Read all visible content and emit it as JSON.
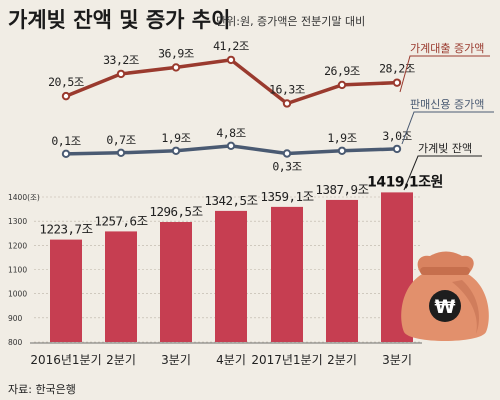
{
  "title": "가계빚 잔액 및 증가 추이",
  "subtitle": "단위:원, 증가액은 전분기말 대비",
  "source": "자료: 한국은행",
  "icon": "money-bag-won-icon",
  "colors": {
    "background": "#f1ede5",
    "bar": "#c63e51",
    "increase_line": "#9a3a2e",
    "credit_line": "#4a5a72",
    "bag": "#e2906c"
  },
  "chart_data": [
    {
      "type": "line",
      "categories": [
        "2016년1분기",
        "2분기",
        "3분기",
        "4분기",
        "2017년1분기",
        "2분기",
        "3분기"
      ],
      "series": [
        {
          "name": "가계대출 증가액",
          "values": [
            20.5,
            33.2,
            36.9,
            41.2,
            16.3,
            26.9,
            28.2
          ],
          "labels": [
            "20,5조",
            "33,2조",
            "36,9조",
            "41,2조",
            "16,3조",
            "26,9조",
            "28,2조"
          ]
        },
        {
          "name": "판매신용 증가액",
          "values": [
            0.1,
            0.7,
            1.9,
            4.8,
            0.3,
            1.9,
            3.0
          ],
          "labels": [
            "0,1조",
            "0,7조",
            "1,9조",
            "4,8조",
            "0,3조",
            "1,9조",
            "3,0조"
          ]
        }
      ]
    },
    {
      "type": "bar",
      "categories": [
        "2016년1분기",
        "2분기",
        "3분기",
        "4분기",
        "2017년1분기",
        "2분기",
        "3분기"
      ],
      "series": [
        {
          "name": "가계빚 잔액",
          "values": [
            1223.7,
            1257.6,
            1296.5,
            1342.5,
            1359.1,
            1387.9,
            1419.1
          ],
          "labels": [
            "1223,7조",
            "1257,6조",
            "1296,5조",
            "1342,5조",
            "1359,1조",
            "1387,9조",
            "1419,1조원"
          ]
        }
      ],
      "ylim": [
        800,
        1400
      ],
      "yticks": [
        "1400(조)",
        "1300",
        "1200",
        "1100",
        "1000",
        "900",
        "800"
      ]
    }
  ]
}
